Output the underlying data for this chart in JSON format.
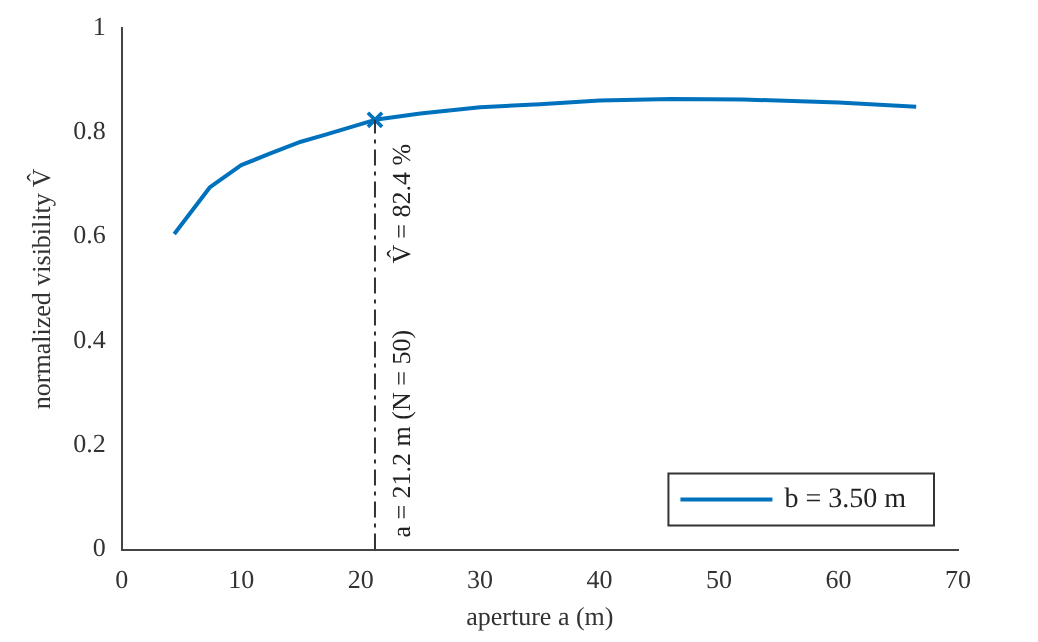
{
  "chart_data": {
    "type": "line",
    "xlabel": "aperture a (m)",
    "ylabel": "normalized visibility V̂",
    "xlim": [
      0,
      70
    ],
    "xticks": [
      0,
      10,
      20,
      30,
      40,
      50,
      60,
      70
    ],
    "ylim": [
      0,
      1
    ],
    "yticks": [
      0,
      0.2,
      0.4,
      0.6,
      0.8,
      1
    ],
    "grid": false,
    "legend": "bottom right",
    "series": [
      {
        "name": "b = 3.50 m",
        "color": "#0072bd",
        "marker": "none",
        "x": [
          4.4,
          7.4,
          10,
          12.5,
          15,
          17,
          21.2,
          25,
          30,
          35,
          40,
          46,
          52,
          60,
          66.5
        ],
        "values": [
          0.605,
          0.695,
          0.737,
          0.76,
          0.782,
          0.795,
          0.824,
          0.836,
          0.848,
          0.854,
          0.861,
          0.864,
          0.863,
          0.857,
          0.849
        ]
      },
      {
        "type": "scatter",
        "color": "#0072bd",
        "marker": "cross",
        "x": [
          21.2
        ],
        "values": [
          0.824
        ]
      }
    ],
    "ref_lines": [
      {
        "axis": "x",
        "value": 21.2,
        "label": "a = 21.2 m (N = 50)",
        "color": "#333333",
        "line_style": "dashed"
      }
    ],
    "annotations": [
      {
        "text": "V̂ = 82.4 %",
        "x": 21.2,
        "y": 0.824
      }
    ]
  }
}
